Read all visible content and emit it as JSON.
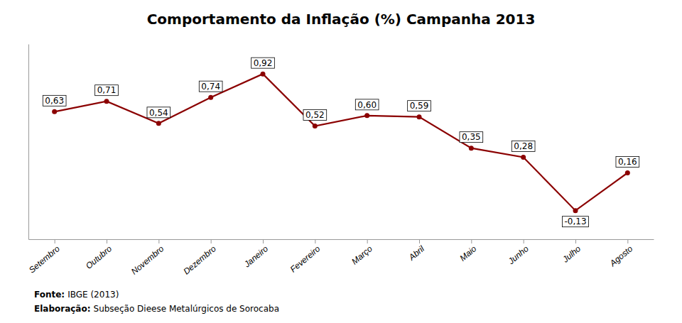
{
  "chart_data": {
    "type": "line",
    "title": "Comportamento da Inflação (%) Campanha 2013",
    "categories": [
      "Setembro",
      "Outubro",
      "Novembro",
      "Dezembro",
      "Janeiro",
      "Fevereiro",
      "Março",
      "Abril",
      "Maio",
      "Junho",
      "Julho",
      "Agosto"
    ],
    "values": [
      0.63,
      0.71,
      0.54,
      0.74,
      0.92,
      0.52,
      0.6,
      0.59,
      0.35,
      0.28,
      -0.13,
      0.16
    ],
    "value_labels": [
      "0,63",
      "0,71",
      "0,54",
      "0,74",
      "0,92",
      "0,52",
      "0,60",
      "0,59",
      "0,35",
      "0,28",
      "-0,13",
      "0,16"
    ],
    "data_labels": true,
    "color": "#8B0000",
    "marker": "circle",
    "ylim": [
      -0.35,
      1.15
    ],
    "tick_labels": "x",
    "grid": false,
    "annotations": [
      {
        "label": "Fonte:",
        "text": "IBGE (2013)"
      },
      {
        "label": "Elaboração:",
        "text": "Subseção Dieese Metalúrgicos de Sorocaba"
      }
    ]
  }
}
